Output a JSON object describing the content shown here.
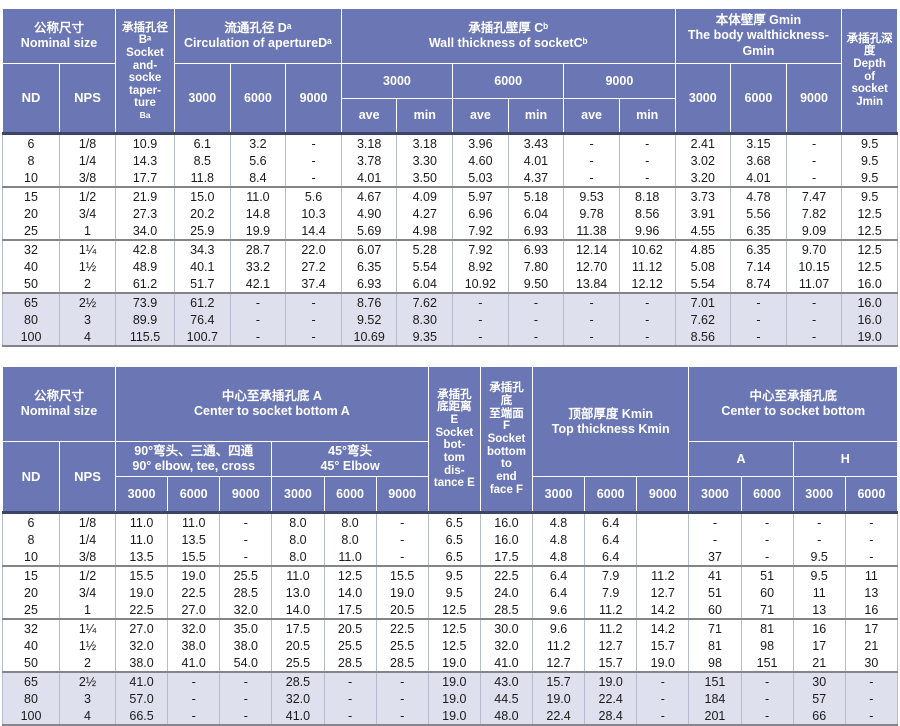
{
  "colors": {
    "header_bg": "#6b76b5",
    "header_text": "#ffffff",
    "body_text": "#1a1a1a",
    "shaded_row_bg": "#dfe0ee",
    "grid_light": "#b7bbce",
    "grid_dark": "#848489"
  },
  "table1": {
    "header": {
      "nominal": "公称尺寸\nNominal size",
      "nd": "ND",
      "nps": "NPS",
      "socket_b": "承插孔径\nBᵃ\nSocket\nand-\nsocke\ntaper-\nture",
      "socket_b_sub": "Ba",
      "circulation": "流通孔径 Dᵃ\nCirculation of apertureDᵃ",
      "wall": "承插孔壁厚 Cᵇ\nWall thickness of socketCᵇ",
      "body_wall": "本体壁厚 Gmin\nThe body walthickness-\nGmin",
      "depth": "承插孔深度\nDepth\nof\nsocket\nJmin",
      "d_sizes": [
        "3000",
        "6000",
        "9000"
      ],
      "c_sizes": [
        "3000",
        "6000",
        "9000"
      ],
      "ave": "ave",
      "min": "min",
      "g_sizes": [
        "3000",
        "6000",
        "9000"
      ]
    },
    "groups": [
      {
        "shaded": false,
        "rows": [
          [
            "6",
            "1/8",
            "10.9",
            "6.1",
            "3.2",
            "-",
            "3.18",
            "3.18",
            "3.96",
            "3.43",
            "-",
            "-",
            "2.41",
            "3.15",
            "-",
            "9.5"
          ],
          [
            "8",
            "1/4",
            "14.3",
            "8.5",
            "5.6",
            "-",
            "3.78",
            "3.30",
            "4.60",
            "4.01",
            "-",
            "-",
            "3.02",
            "3.68",
            "-",
            "9.5"
          ],
          [
            "10",
            "3/8",
            "17.7",
            "11.8",
            "8.4",
            "-",
            "4.01",
            "3.50",
            "5.03",
            "4.37",
            "-",
            "-",
            "3.20",
            "4.01",
            "-",
            "9.5"
          ]
        ]
      },
      {
        "shaded": false,
        "rows": [
          [
            "15",
            "1/2",
            "21.9",
            "15.0",
            "11.0",
            "5.6",
            "4.67",
            "4.09",
            "5.97",
            "5.18",
            "9.53",
            "8.18",
            "3.73",
            "4.78",
            "7.47",
            "9.5"
          ],
          [
            "20",
            "3/4",
            "27.3",
            "20.2",
            "14.8",
            "10.3",
            "4.90",
            "4.27",
            "6.96",
            "6.04",
            "9.78",
            "8.56",
            "3.91",
            "5.56",
            "7.82",
            "12.5"
          ],
          [
            "25",
            "1",
            "34.0",
            "25.9",
            "19.9",
            "14.4",
            "5.69",
            "4.98",
            "7.92",
            "6.93",
            "11.38",
            "9.96",
            "4.55",
            "6.35",
            "9.09",
            "12.5"
          ]
        ]
      },
      {
        "shaded": false,
        "rows": [
          [
            "32",
            "1¼",
            "42.8",
            "34.3",
            "28.7",
            "22.0",
            "6.07",
            "5.28",
            "7.92",
            "6.93",
            "12.14",
            "10.62",
            "4.85",
            "6.35",
            "9.70",
            "12.5"
          ],
          [
            "40",
            "1½",
            "48.9",
            "40.1",
            "33.2",
            "27.2",
            "6.35",
            "5.54",
            "8.92",
            "7.80",
            "12.70",
            "11.12",
            "5.08",
            "7.14",
            "10.15",
            "12.5"
          ],
          [
            "50",
            "2",
            "61.2",
            "51.7",
            "42.1",
            "37.4",
            "6.93",
            "6.04",
            "10.92",
            "9.50",
            "13.84",
            "12.12",
            "5.54",
            "8.74",
            "11.07",
            "16.0"
          ]
        ]
      },
      {
        "shaded": true,
        "rows": [
          [
            "65",
            "2½",
            "73.9",
            "61.2",
            "-",
            "-",
            "8.76",
            "7.62",
            "-",
            "-",
            "-",
            "-",
            "7.01",
            "-",
            "-",
            "16.0"
          ],
          [
            "80",
            "3",
            "89.9",
            "76.4",
            "-",
            "-",
            "9.52",
            "8.30",
            "-",
            "-",
            "-",
            "-",
            "7.62",
            "-",
            "-",
            "16.0"
          ],
          [
            "100",
            "4",
            "115.5",
            "100.7",
            "-",
            "-",
            "10.69",
            "9.35",
            "-",
            "-",
            "-",
            "-",
            "8.56",
            "-",
            "-",
            "19.0"
          ]
        ]
      }
    ]
  },
  "table2": {
    "header": {
      "nominal": "公称尺寸\nNominal size",
      "nd": "ND",
      "nps": "NPS",
      "center_a": "中心至承插孔底 A\nCenter to socket bottom A",
      "elbow90": "90°弯头、三通、四通\n90° elbow, tee, cross",
      "elbow45": "45°弯头\n45° Elbow",
      "socket_e": "承插孔\n底距离\nE\nSocket\nbot-\ntom\ndis-\ntance E",
      "socket_f": "承插孔\n底\n至端面\nF\nSocket\nbottom\nto\nend\nface F",
      "kmin": "顶部厚度 Kmin\nTop thickness Kmin",
      "center2": "中心至承插孔底\nCenter to socket bottom",
      "a_label": "A",
      "h_label": "H",
      "e90_sizes": [
        "3000",
        "6000",
        "9000"
      ],
      "e45_sizes": [
        "3000",
        "6000",
        "9000"
      ],
      "k_sizes": [
        "3000",
        "6000",
        "9000"
      ],
      "a_sizes": [
        "3000",
        "6000"
      ],
      "h_sizes": [
        "3000",
        "6000"
      ]
    },
    "groups": [
      {
        "shaded": false,
        "rows": [
          [
            "6",
            "1/8",
            "11.0",
            "11.0",
            "-",
            "8.0",
            "8.0",
            "-",
            "6.5",
            "16.0",
            "4.8",
            "6.4",
            "",
            "-",
            "-",
            "-",
            "-"
          ],
          [
            "8",
            "1/4",
            "11.0",
            "13.5",
            "-",
            "8.0",
            "8.0",
            "-",
            "6.5",
            "16.0",
            "4.8",
            "6.4",
            "",
            "-",
            "-",
            "-",
            "-"
          ],
          [
            "10",
            "3/8",
            "13.5",
            "15.5",
            "-",
            "8.0",
            "11.0",
            "-",
            "6.5",
            "17.5",
            "4.8",
            "6.4",
            "",
            "37",
            "-",
            "9.5",
            "-"
          ]
        ]
      },
      {
        "shaded": false,
        "rows": [
          [
            "15",
            "1/2",
            "15.5",
            "19.0",
            "25.5",
            "11.0",
            "12.5",
            "15.5",
            "9.5",
            "22.5",
            "6.4",
            "7.9",
            "11.2",
            "41",
            "51",
            "9.5",
            "11"
          ],
          [
            "20",
            "3/4",
            "19.0",
            "22.5",
            "28.5",
            "13.0",
            "14.0",
            "19.0",
            "9.5",
            "24.0",
            "6.4",
            "7.9",
            "12.7",
            "51",
            "60",
            "11",
            "13"
          ],
          [
            "25",
            "1",
            "22.5",
            "27.0",
            "32.0",
            "14.0",
            "17.5",
            "20.5",
            "12.5",
            "28.5",
            "9.6",
            "11.2",
            "14.2",
            "60",
            "71",
            "13",
            "16"
          ]
        ]
      },
      {
        "shaded": false,
        "rows": [
          [
            "32",
            "1¼",
            "27.0",
            "32.0",
            "35.0",
            "17.5",
            "20.5",
            "22.5",
            "12.5",
            "30.0",
            "9.6",
            "11.2",
            "14.2",
            "71",
            "81",
            "16",
            "17"
          ],
          [
            "40",
            "1½",
            "32.0",
            "38.0",
            "38.0",
            "20.5",
            "25.5",
            "25.5",
            "12.5",
            "32.0",
            "11.2",
            "12.7",
            "15.7",
            "81",
            "98",
            "17",
            "21"
          ],
          [
            "50",
            "2",
            "38.0",
            "41.0",
            "54.0",
            "25.5",
            "28.5",
            "28.5",
            "19.0",
            "41.0",
            "12.7",
            "15.7",
            "19.0",
            "98",
            "151",
            "21",
            "30"
          ]
        ]
      },
      {
        "shaded": true,
        "rows": [
          [
            "65",
            "2½",
            "41.0",
            "-",
            "-",
            "28.5",
            "-",
            "-",
            "19.0",
            "43.0",
            "15.7",
            "19.0",
            "-",
            "151",
            "-",
            "30",
            "-"
          ],
          [
            "80",
            "3",
            "57.0",
            "-",
            "-",
            "32.0",
            "-",
            "-",
            "19.0",
            "44.5",
            "19.0",
            "22.4",
            "-",
            "184",
            "-",
            "57",
            "-"
          ],
          [
            "100",
            "4",
            "66.5",
            "-",
            "-",
            "41.0",
            "-",
            "-",
            "19.0",
            "48.0",
            "22.4",
            "28.4",
            "-",
            "201",
            "-",
            "66",
            "-"
          ]
        ]
      }
    ]
  }
}
